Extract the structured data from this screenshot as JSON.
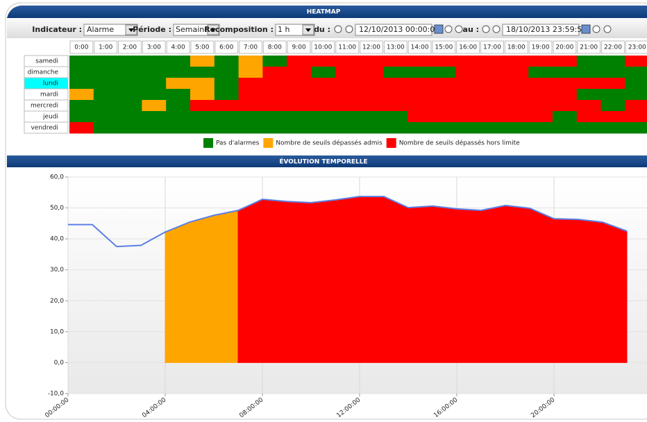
{
  "toolbar": {
    "indicator_label": "Indicateur :",
    "indicator": "Alarme",
    "period_label": "Période :",
    "period": "Semaine",
    "recomposition_label": "Recomposition :",
    "recomposition": "1 h",
    "from_label": "du :",
    "from": "12/10/2013 00:00:00",
    "to_label": "au :",
    "to": "18/10/2013 23:59:59"
  },
  "chart_data": [
    {
      "type": "heatmap",
      "title": "HEATMAP",
      "categories": [
        "0:00",
        "1:00",
        "2:00",
        "3:00",
        "4:00",
        "5:00",
        "6:00",
        "7:00",
        "8:00",
        "9:00",
        "10:00",
        "11:00",
        "12:00",
        "13:00",
        "14:00",
        "15:00",
        "16:00",
        "17:00",
        "18:00",
        "19:00",
        "20:00",
        "21:00",
        "22:00",
        "23:00"
      ],
      "rows": [
        "samedi",
        "dimanche",
        "lundi",
        "mardi",
        "mercredi",
        "jeudi",
        "vendredi"
      ],
      "selected_row": 2,
      "values": [
        [
          0,
          0,
          0,
          0,
          0,
          1,
          0,
          1,
          0,
          2,
          2,
          2,
          2,
          2,
          2,
          2,
          2,
          2,
          2,
          2,
          2,
          0,
          0,
          2
        ],
        [
          0,
          0,
          0,
          0,
          0,
          0,
          0,
          1,
          2,
          2,
          0,
          2,
          2,
          0,
          0,
          0,
          2,
          2,
          2,
          0,
          0,
          0,
          0,
          0
        ],
        [
          0,
          0,
          0,
          0,
          1,
          1,
          0,
          2,
          2,
          2,
          2,
          2,
          2,
          2,
          2,
          2,
          2,
          2,
          2,
          2,
          2,
          2,
          2,
          0
        ],
        [
          1,
          0,
          0,
          0,
          0,
          1,
          0,
          2,
          2,
          2,
          2,
          2,
          2,
          2,
          2,
          2,
          2,
          2,
          2,
          2,
          2,
          0,
          0,
          0
        ],
        [
          0,
          0,
          0,
          1,
          0,
          2,
          2,
          2,
          2,
          2,
          2,
          2,
          2,
          2,
          2,
          2,
          2,
          2,
          2,
          2,
          2,
          2,
          0,
          2
        ],
        [
          0,
          0,
          0,
          0,
          0,
          0,
          0,
          0,
          0,
          0,
          0,
          0,
          0,
          0,
          2,
          2,
          2,
          2,
          2,
          2,
          0,
          2,
          2,
          2
        ],
        [
          2,
          0,
          0,
          0,
          0,
          0,
          0,
          0,
          0,
          0,
          0,
          0,
          0,
          0,
          0,
          0,
          0,
          0,
          0,
          0,
          0,
          0,
          0,
          0
        ]
      ],
      "legend": [
        {
          "value": 0,
          "name": "Pas d'alarmes",
          "color": "#008000"
        },
        {
          "value": 1,
          "name": "Nombre de seuils dépassés admis",
          "color": "#ffa500"
        },
        {
          "value": 2,
          "name": "Nombre de seuils dépassés hors limite",
          "color": "#ff0000"
        }
      ]
    },
    {
      "type": "line",
      "title": "ÉVOLUTION TEMPORELLE",
      "x": [
        0,
        1,
        2,
        3,
        4,
        5,
        6,
        7,
        8,
        9,
        10,
        11,
        12,
        13,
        14,
        15,
        16,
        17,
        18,
        19,
        20,
        21,
        22,
        23
      ],
      "xlim": [
        0,
        24
      ],
      "xticks": [
        {
          "value": 0,
          "label": "00:00:00"
        },
        {
          "value": 4,
          "label": "04:00:00"
        },
        {
          "value": 8,
          "label": "08:00:00"
        },
        {
          "value": 12,
          "label": "12:00:00"
        },
        {
          "value": 16,
          "label": "16:00:00"
        },
        {
          "value": 20,
          "label": "20:00:00"
        }
      ],
      "ylim": [
        -10,
        60
      ],
      "yticks": [
        {
          "value": -10,
          "label": "-10,0"
        },
        {
          "value": 0,
          "label": "0,0"
        },
        {
          "value": 10,
          "label": "10,0"
        },
        {
          "value": 20,
          "label": "20,0"
        },
        {
          "value": 30,
          "label": "30,0"
        },
        {
          "value": 40,
          "label": "40,0"
        },
        {
          "value": 50,
          "label": "50,0"
        },
        {
          "value": 60,
          "label": "60,0"
        }
      ],
      "grid": true,
      "series": [
        {
          "color": "#5b7fe6",
          "values": [
            44.6,
            44.6,
            37.5,
            37.9,
            42.2,
            45.4,
            47.6,
            49.2,
            52.8,
            52.1,
            51.7,
            52.6,
            53.7,
            53.7,
            50.1,
            50.6,
            49.7,
            49.2,
            50.8,
            49.9,
            46.5,
            46.3,
            45.4,
            42.5
          ]
        },
        {
          "color": "#ffa500",
          "area": true,
          "values": [
            null,
            null,
            null,
            null,
            42.2,
            45.4,
            47.6,
            49.2,
            null,
            null,
            null,
            null,
            null,
            null,
            null,
            null,
            null,
            null,
            null,
            null,
            null,
            null,
            null,
            null
          ]
        },
        {
          "color": "#ff0000",
          "area": true,
          "values": [
            null,
            null,
            null,
            null,
            null,
            null,
            null,
            49.2,
            52.8,
            52.1,
            51.7,
            52.6,
            53.7,
            53.7,
            50.1,
            50.6,
            49.7,
            49.2,
            50.8,
            49.9,
            46.5,
            46.3,
            45.4,
            42.5
          ]
        }
      ]
    }
  ]
}
